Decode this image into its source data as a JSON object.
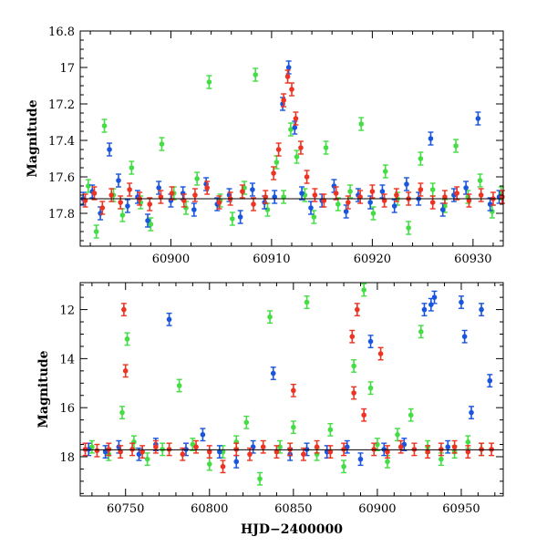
{
  "figure": {
    "x_axis_label": "HJD−2400000",
    "colors": {
      "green": "#44dd44",
      "blue": "#1a55dd",
      "red": "#ee3322"
    }
  },
  "chart_data": [
    {
      "type": "scatter",
      "panel": "top",
      "title": "",
      "xlabel": "",
      "ylabel": "Magnitude",
      "xlim": [
        60891,
        60933
      ],
      "ylim": [
        17.98,
        16.8
      ],
      "y_inverted": true,
      "xticks": [
        60900,
        60910,
        60920,
        60930
      ],
      "yticks": [
        16.8,
        17,
        17.2,
        17.4,
        17.6,
        17.8
      ],
      "reference_line": 17.72,
      "series": [
        {
          "name": "green",
          "color": "#44dd44",
          "x": [
            60891.8,
            60892.6,
            60893.4,
            60894.3,
            60895.2,
            60896.1,
            60897.0,
            60898.0,
            60899.1,
            60900.3,
            60901.5,
            60902.6,
            60903.8,
            60904.9,
            60906.1,
            60907.3,
            60908.4,
            60909.6,
            60910.5,
            60911.2,
            60911.9,
            60912.5,
            60913.3,
            60914.2,
            60915.4,
            60916.6,
            60917.8,
            60918.9,
            60920.1,
            60921.3,
            60922.5,
            60923.6,
            60924.8,
            60926.0,
            60927.2,
            60928.3,
            60929.5,
            60930.7,
            60931.9,
            60932.8
          ],
          "y": [
            17.65,
            17.9,
            17.32,
            17.7,
            17.81,
            17.55,
            17.74,
            17.86,
            17.42,
            17.69,
            17.77,
            17.61,
            17.08,
            17.73,
            17.83,
            17.66,
            17.04,
            17.78,
            17.52,
            17.71,
            17.34,
            17.49,
            17.7,
            17.82,
            17.44,
            17.75,
            17.68,
            17.31,
            17.8,
            17.57,
            17.72,
            17.88,
            17.5,
            17.67,
            17.76,
            17.43,
            17.71,
            17.62,
            17.79,
            17.69
          ]
        },
        {
          "name": "blue",
          "color": "#1a55dd",
          "x": [
            60891.3,
            60892.2,
            60893.0,
            60893.9,
            60894.8,
            60895.7,
            60896.7,
            60897.7,
            60898.8,
            60900.0,
            60901.2,
            60902.3,
            60903.5,
            60904.6,
            60905.8,
            60906.9,
            60908.1,
            60909.3,
            60910.3,
            60911.1,
            60911.7,
            60912.3,
            60913.0,
            60913.9,
            60915.0,
            60916.2,
            60917.4,
            60918.6,
            60919.8,
            60921.0,
            60922.2,
            60923.4,
            60924.6,
            60925.8,
            60927.0,
            60928.1,
            60929.3,
            60930.5,
            60931.7,
            60932.6
          ],
          "y": [
            17.72,
            17.68,
            17.8,
            17.45,
            17.62,
            17.76,
            17.71,
            17.84,
            17.66,
            17.73,
            17.69,
            17.78,
            17.64,
            17.75,
            17.7,
            17.82,
            17.67,
            17.74,
            17.71,
            17.2,
            17.0,
            17.33,
            17.69,
            17.77,
            17.73,
            17.65,
            17.79,
            17.7,
            17.74,
            17.68,
            17.76,
            17.64,
            17.72,
            17.39,
            17.78,
            17.7,
            17.66,
            17.28,
            17.75,
            17.71
          ]
        },
        {
          "name": "red",
          "color": "#ee3322",
          "x": [
            60891.5,
            60892.4,
            60893.2,
            60894.1,
            60895.0,
            60895.9,
            60896.9,
            60897.9,
            60899.0,
            60900.1,
            60901.3,
            60902.4,
            60903.6,
            60904.8,
            60905.9,
            60907.1,
            60908.2,
            60909.4,
            60910.2,
            60910.7,
            60911.2,
            60911.6,
            60912.0,
            60912.4,
            60912.9,
            60913.5,
            60914.3,
            60915.2,
            60916.4,
            60917.6,
            60918.8,
            60920.0,
            60921.2,
            60922.4,
            60923.6,
            60924.8,
            60926.0,
            60927.2,
            60928.4,
            60929.6,
            60930.8,
            60932.0,
            60932.9
          ],
          "y": [
            17.73,
            17.69,
            17.77,
            17.7,
            17.74,
            17.67,
            17.72,
            17.75,
            17.71,
            17.69,
            17.73,
            17.7,
            17.66,
            17.74,
            17.72,
            17.68,
            17.75,
            17.71,
            17.58,
            17.45,
            17.18,
            17.05,
            17.12,
            17.28,
            17.44,
            17.6,
            17.7,
            17.73,
            17.69,
            17.74,
            17.71,
            17.68,
            17.73,
            17.7,
            17.72,
            17.67,
            17.74,
            17.71,
            17.69,
            17.73,
            17.7,
            17.72,
            17.71
          ]
        }
      ]
    },
    {
      "type": "scatter",
      "panel": "bottom",
      "title": "",
      "xlabel": "HJD−2400000",
      "ylabel": "Magnitude",
      "xlim": [
        60723,
        60975
      ],
      "ylim": [
        19.6,
        10.9
      ],
      "y_inverted": true,
      "xticks": [
        60750,
        60800,
        60850,
        60900,
        60950
      ],
      "yticks": [
        12,
        14,
        16,
        18
      ],
      "reference_line": 17.72,
      "series": [
        {
          "name": "green",
          "color": "#44dd44",
          "x": [
            60730,
            60740,
            60748,
            60751,
            60755,
            60763,
            60772,
            60782,
            60790,
            60800,
            60808,
            60816,
            60822,
            60830,
            60836,
            60842,
            60850,
            60858,
            60864,
            60872,
            60880,
            60886,
            60892,
            60896,
            60900,
            60906,
            60912,
            60920,
            60926,
            60930,
            60938,
            60946,
            60954,
            60962
          ],
          "y": [
            17.6,
            17.9,
            16.2,
            13.2,
            17.4,
            18.1,
            17.7,
            15.1,
            17.5,
            18.3,
            17.8,
            17.4,
            16.6,
            18.9,
            12.3,
            17.6,
            16.8,
            11.7,
            17.9,
            16.9,
            18.4,
            14.3,
            11.2,
            15.2,
            17.5,
            18.2,
            17.1,
            16.3,
            12.9,
            17.6,
            18.1,
            17.8,
            17.4,
            17.7
          ]
        },
        {
          "name": "blue",
          "color": "#1a55dd",
          "x": [
            60728,
            60738,
            60746,
            60758,
            60768,
            60776,
            60786,
            60796,
            60806,
            60816,
            60826,
            60838,
            60848,
            60858,
            60870,
            60882,
            60890,
            60896,
            60904,
            60916,
            60928,
            60932,
            60934,
            60942,
            60950,
            60952,
            60956,
            60962,
            60967
          ],
          "y": [
            17.7,
            17.8,
            17.6,
            17.9,
            17.5,
            12.4,
            17.7,
            17.1,
            17.8,
            18.2,
            17.6,
            14.6,
            17.9,
            17.7,
            17.8,
            17.6,
            18.1,
            13.3,
            17.7,
            17.5,
            12.0,
            11.8,
            11.5,
            17.6,
            11.7,
            13.1,
            16.2,
            12.0,
            14.9
          ]
        },
        {
          "name": "red",
          "color": "#ee3322",
          "x": [
            60726,
            60733,
            60740,
            60747,
            60749,
            60750,
            60754,
            60760,
            60768,
            60776,
            60784,
            60792,
            60800,
            60808,
            60816,
            60824,
            60832,
            60840,
            60848,
            60850,
            60856,
            60864,
            60872,
            60880,
            60885,
            60886,
            60888,
            60892,
            60898,
            60902,
            60906,
            60914,
            60922,
            60930,
            60938,
            60946,
            60954,
            60962,
            60968
          ],
          "y": [
            17.7,
            17.75,
            17.7,
            17.8,
            12.0,
            14.5,
            17.7,
            17.8,
            17.6,
            17.7,
            17.9,
            17.6,
            17.8,
            18.4,
            17.7,
            17.9,
            17.6,
            17.8,
            17.7,
            15.3,
            17.9,
            17.6,
            17.8,
            17.7,
            13.1,
            15.4,
            12.0,
            16.3,
            17.7,
            13.8,
            17.8,
            17.6,
            17.7,
            17.8,
            17.7,
            17.6,
            17.8,
            17.7,
            17.7
          ]
        }
      ]
    }
  ]
}
